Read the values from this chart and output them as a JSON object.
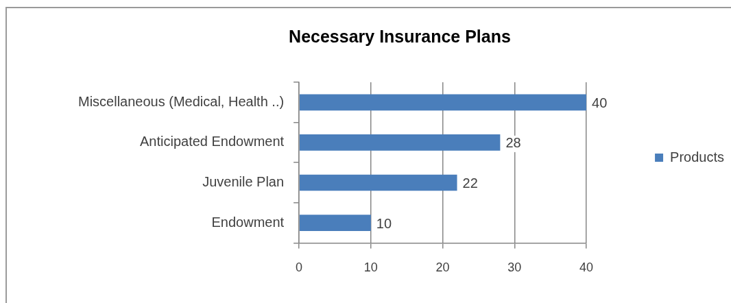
{
  "chart_data": {
    "type": "bar",
    "title": "Necessary Insurance Plans",
    "orientation": "horizontal",
    "categories": [
      "Miscellaneous (Medical, Health ..)",
      "Anticipated Endowment",
      "Juvenile Plan",
      "Endowment"
    ],
    "series": [
      {
        "name": "Products",
        "color": "#4a7ebb",
        "values": [
          40,
          28,
          22,
          10
        ]
      }
    ],
    "xlim": [
      0,
      40
    ],
    "xticks": [
      0,
      10,
      20,
      30,
      40
    ],
    "grid": "x",
    "legend": "right",
    "data_labels": true
  }
}
